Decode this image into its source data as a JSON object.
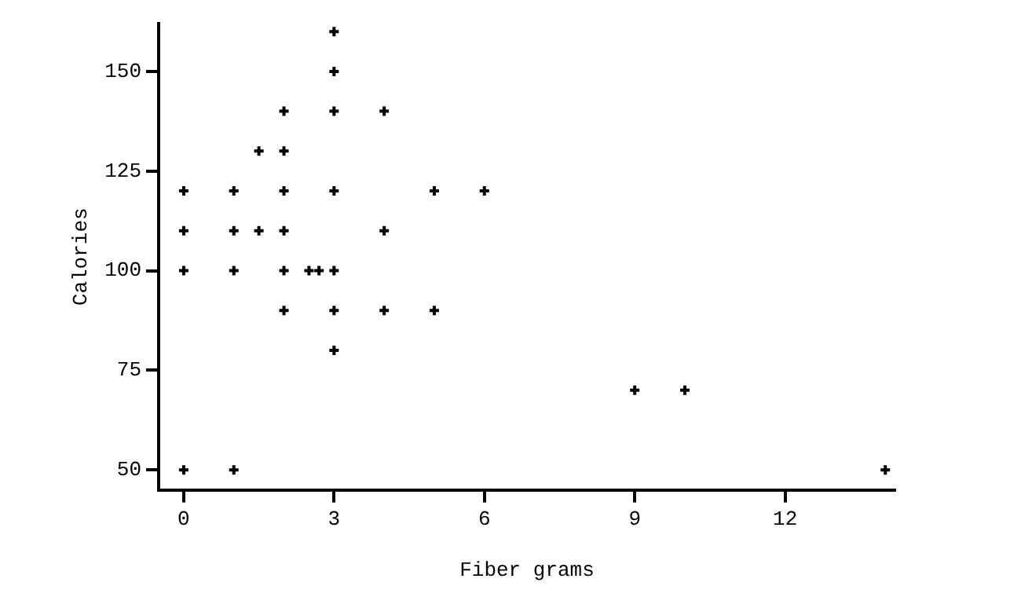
{
  "chart_data": {
    "type": "scatter",
    "xlabel": "Fiber grams",
    "ylabel": "Calories",
    "marker": "cross",
    "grid": false,
    "legend": false,
    "xlim": [
      -0.5,
      14.2
    ],
    "xticks": [
      0,
      3,
      6,
      9,
      12
    ],
    "ylim": [
      45,
      162
    ],
    "yticks": [
      50,
      75,
      100,
      125,
      150
    ],
    "series": [
      {
        "color": "#000000",
        "x": [
          0,
          0,
          0,
          0,
          1,
          1,
          1,
          1,
          1.5,
          1.5,
          2,
          2,
          2,
          2,
          2,
          2,
          2.5,
          2.7,
          3,
          3,
          3,
          3,
          3,
          3,
          3,
          4,
          4,
          4,
          5,
          5,
          6,
          9,
          10,
          14
        ],
        "values": [
          120,
          110,
          100,
          50,
          120,
          110,
          100,
          50,
          130,
          110,
          140,
          130,
          120,
          110,
          100,
          90,
          100,
          100,
          160,
          150,
          140,
          120,
          100,
          90,
          80,
          140,
          110,
          90,
          120,
          90,
          120,
          70,
          70,
          50
        ]
      }
    ]
  }
}
